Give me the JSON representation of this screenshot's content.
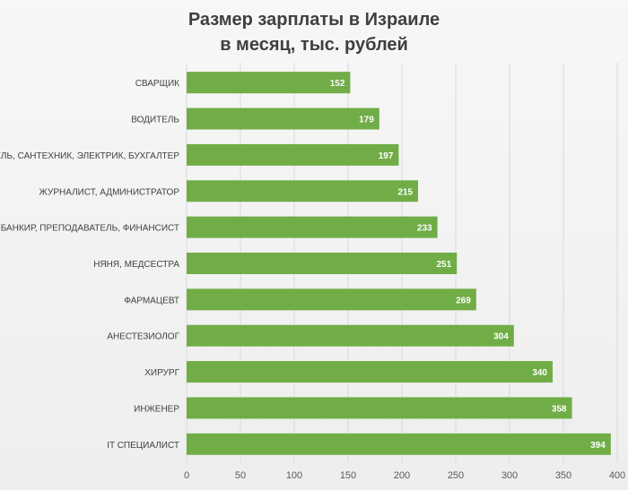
{
  "chart_data": {
    "type": "bar",
    "orientation": "horizontal",
    "title_lines": [
      "Размер зарплаты в Израиле",
      "в месяц, тыс. рублей"
    ],
    "categories": [
      "СВАРЩИК",
      "ВОДИТЕЛЬ",
      "УЧИТЕЛЬ, САНТЕХНИК, ЭЛЕКТРИК, БУХГАЛТЕР",
      "ЖУРНАЛИСТ, АДМИНИСТРАТОР",
      "БАНКИР, ПРЕПОДАВАТЕЛЬ, ФИНАНСИСТ",
      "НЯНЯ, МЕДСЕСТРА",
      "ФАРМАЦЕВТ",
      "АНЕСТЕЗИОЛОГ",
      "ХИРУРГ",
      "ИНЖЕНЕР",
      "IT СПЕЦИАЛИСТ"
    ],
    "values": [
      152,
      179,
      197,
      215,
      233,
      251,
      269,
      304,
      340,
      358,
      394
    ],
    "xlim": [
      0,
      400
    ],
    "xticks": [
      0,
      50,
      100,
      150,
      200,
      250,
      300,
      350,
      400
    ],
    "grid": true,
    "legend": "none",
    "bar_color": "#70ad47",
    "grid_color": "#d9d9d9",
    "label_color": "#ffffff",
    "text_color": "#404040"
  }
}
